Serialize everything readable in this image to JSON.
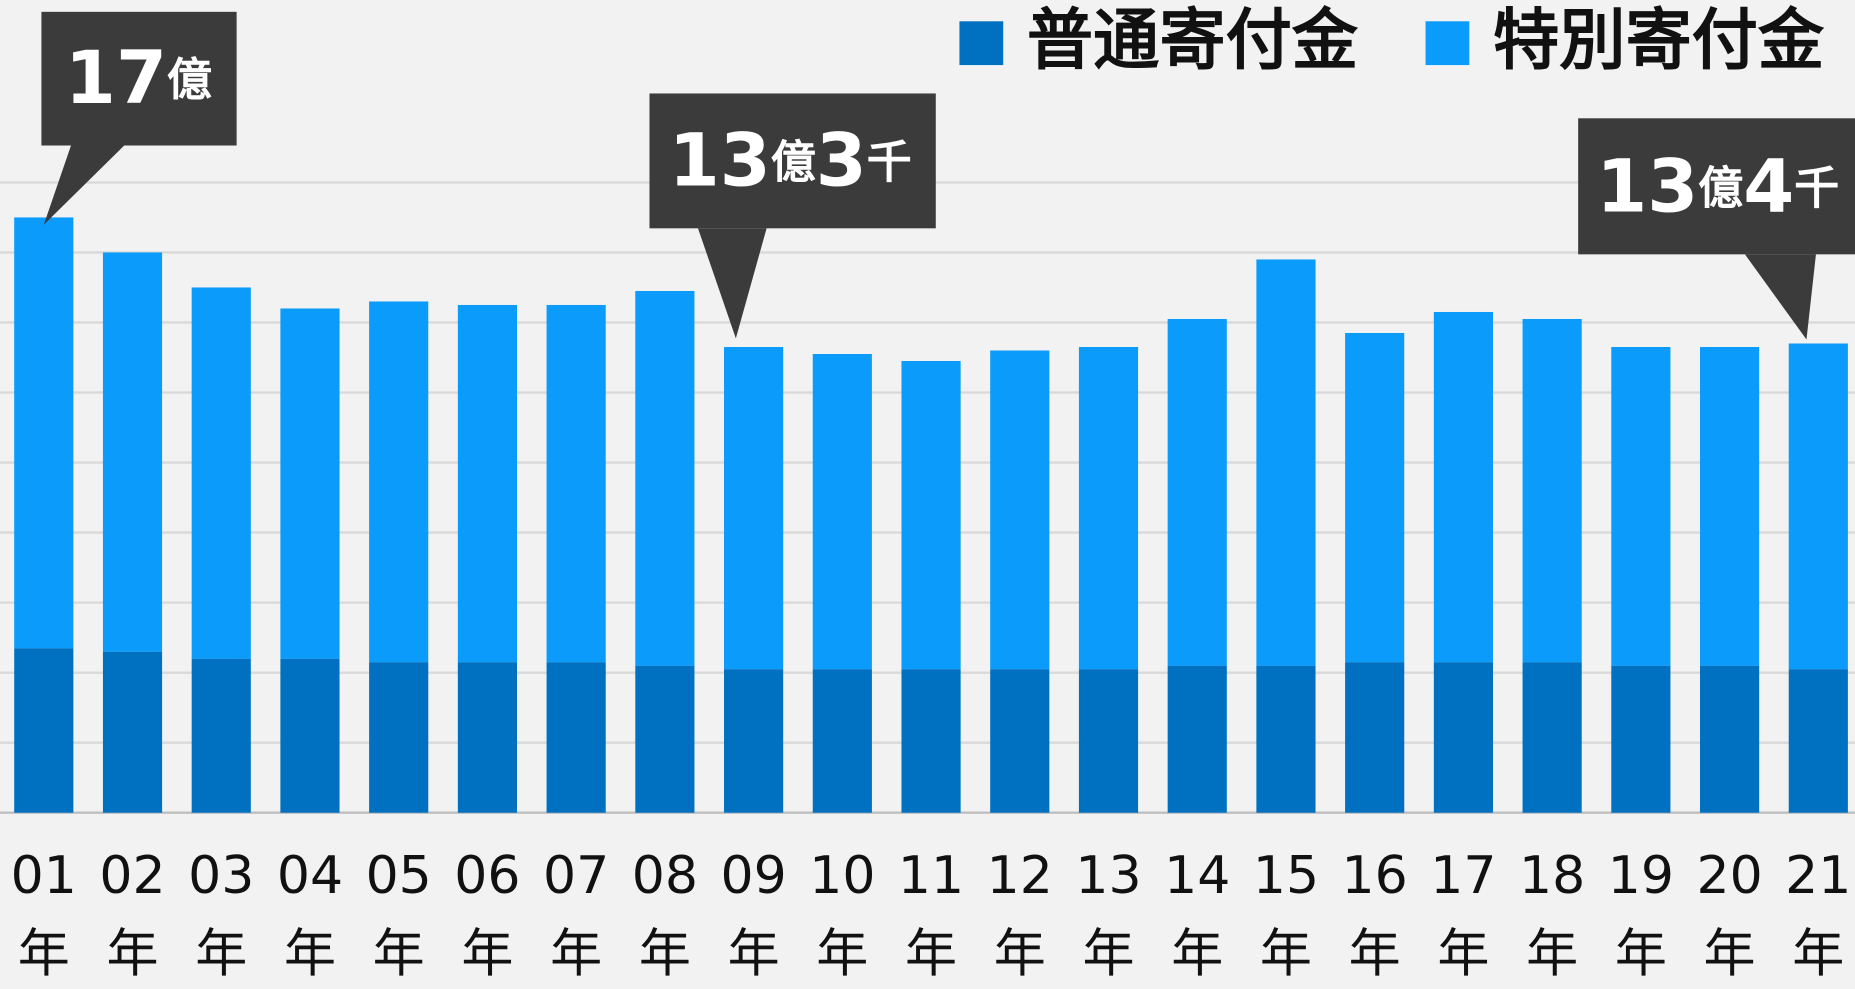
{
  "chart_data": {
    "type": "stacked_bar",
    "categories": [
      "01年",
      "02年",
      "03年",
      "04年",
      "05年",
      "06年",
      "07年",
      "08年",
      "09年",
      "10年",
      "11年",
      "12年",
      "13年",
      "14年",
      "15年",
      "16年",
      "17年",
      "18年",
      "19年",
      "20年",
      "21年"
    ],
    "series": [
      {
        "name": "普通寄付金",
        "color": "#0070c0",
        "values": [
          4.7,
          4.6,
          4.4,
          4.4,
          4.3,
          4.3,
          4.3,
          4.2,
          4.1,
          4.1,
          4.1,
          4.1,
          4.1,
          4.2,
          4.2,
          4.3,
          4.3,
          4.3,
          4.2,
          4.2,
          4.1
        ]
      },
      {
        "name": "特別寄付金",
        "color": "#0a9bfb",
        "values": [
          12.3,
          11.4,
          10.6,
          10.0,
          10.3,
          10.2,
          10.2,
          10.7,
          9.2,
          9.0,
          8.8,
          9.1,
          9.2,
          9.9,
          11.6,
          9.4,
          10.0,
          9.8,
          9.1,
          9.1,
          9.3
        ]
      }
    ],
    "ylim": [
      0,
      18
    ],
    "yticks": [
      0,
      2,
      4,
      6,
      8,
      10,
      12,
      14,
      16,
      18
    ],
    "grid": true,
    "annotations": [
      "17億",
      "13億3千",
      "13億4千"
    ]
  }
}
